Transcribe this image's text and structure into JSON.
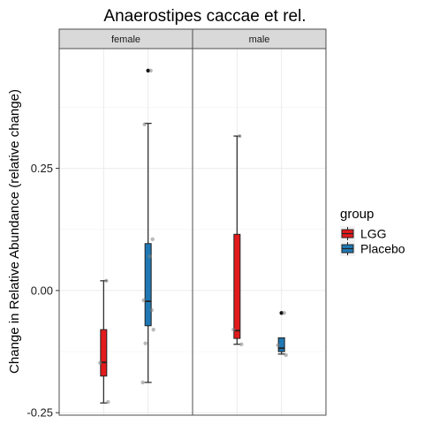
{
  "chart_data": {
    "type": "box",
    "title": "Anaerostipes caccae et rel.",
    "ylabel": "Change in Relative Abundance (relative change)",
    "xlabel": "",
    "ylim": [
      -0.255,
      0.495
    ],
    "yticks": [
      -0.25,
      0.0,
      0.25
    ],
    "ytick_labels": [
      "-0.25",
      "0.00",
      "0.25"
    ],
    "grid": true,
    "legend": {
      "title": "group",
      "position": "right",
      "entries": [
        {
          "label": "LGG",
          "color": "#E31A1C"
        },
        {
          "label": "Placebo",
          "color": "#1F78B4"
        }
      ]
    },
    "panels": [
      {
        "label": "female",
        "boxes": [
          {
            "group": "LGG",
            "color": "#E31A1C",
            "whisker_low": -0.23,
            "q1": -0.175,
            "median": -0.147,
            "q3": -0.08,
            "whisker_high": 0.02,
            "outliers": [],
            "points": [
              0.02,
              -0.148,
              -0.228
            ]
          },
          {
            "group": "Placebo",
            "color": "#1F78B4",
            "whisker_low": -0.188,
            "q1": -0.072,
            "median": -0.022,
            "q3": 0.096,
            "whisker_high": 0.342,
            "outliers": [
              0.45
            ],
            "points": [
              0.45,
              0.34,
              0.105,
              0.07,
              -0.02,
              -0.04,
              -0.08,
              -0.108,
              -0.188
            ]
          }
        ]
      },
      {
        "label": "male",
        "boxes": [
          {
            "group": "LGG",
            "color": "#E31A1C",
            "whisker_low": -0.11,
            "q1": -0.098,
            "median": -0.082,
            "q3": 0.115,
            "whisker_high": 0.316,
            "outliers": [],
            "points": [
              0.316,
              -0.08,
              -0.11
            ]
          },
          {
            "group": "Placebo",
            "color": "#1F78B4",
            "whisker_low": -0.13,
            "q1": -0.125,
            "median": -0.118,
            "q3": -0.097,
            "whisker_high": -0.097,
            "outliers": [
              -0.046
            ],
            "points": [
              -0.046,
              -0.112,
              -0.132
            ]
          }
        ]
      }
    ]
  }
}
